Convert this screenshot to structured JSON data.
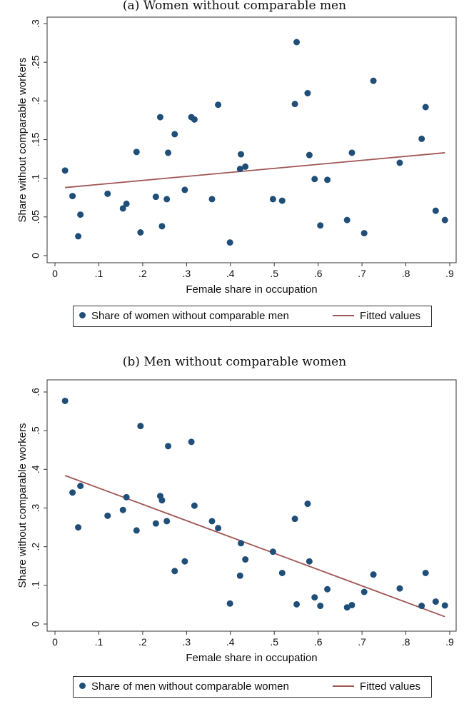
{
  "chart_data": [
    {
      "type": "scatter",
      "title": "(a) Women without comparable men",
      "xlabel": "Female share in occupation",
      "ylabel": "Share without comparable workers",
      "xlim": [
        0,
        0.9
      ],
      "ylim": [
        0,
        0.3
      ],
      "x_ticks": [
        0,
        0.1,
        0.2,
        0.3,
        0.4,
        0.5,
        0.6,
        0.7,
        0.8,
        0.9
      ],
      "x_tick_labels": [
        "0",
        ".1",
        ".2",
        ".3",
        ".4",
        ".5",
        ".6",
        ".7",
        ".8",
        ".9"
      ],
      "y_ticks": [
        0,
        0.05,
        0.1,
        0.15,
        0.2,
        0.25,
        0.3
      ],
      "y_tick_labels": [
        "0",
        ".05",
        ".1",
        ".15",
        ".2",
        ".25",
        ".3"
      ],
      "series": [
        {
          "name": "Share of women without comparable men",
          "kind": "scatter",
          "color": "#1f4e79",
          "points": [
            [
              0.023,
              0.11
            ],
            [
              0.04,
              0.077
            ],
            [
              0.053,
              0.025
            ],
            [
              0.058,
              0.053
            ],
            [
              0.12,
              0.08
            ],
            [
              0.155,
              0.061
            ],
            [
              0.163,
              0.067
            ],
            [
              0.186,
              0.134
            ],
            [
              0.195,
              0.03
            ],
            [
              0.23,
              0.076
            ],
            [
              0.24,
              0.179
            ],
            [
              0.244,
              0.038
            ],
            [
              0.255,
              0.073
            ],
            [
              0.258,
              0.133
            ],
            [
              0.273,
              0.157
            ],
            [
              0.296,
              0.085
            ],
            [
              0.311,
              0.179
            ],
            [
              0.318,
              0.176
            ],
            [
              0.358,
              0.073
            ],
            [
              0.372,
              0.195
            ],
            [
              0.399,
              0.017
            ],
            [
              0.422,
              0.112
            ],
            [
              0.424,
              0.131
            ],
            [
              0.434,
              0.115
            ],
            [
              0.497,
              0.073
            ],
            [
              0.518,
              0.071
            ],
            [
              0.547,
              0.196
            ],
            [
              0.551,
              0.276
            ],
            [
              0.576,
              0.21
            ],
            [
              0.58,
              0.13
            ],
            [
              0.592,
              0.099
            ],
            [
              0.605,
              0.039
            ],
            [
              0.621,
              0.098
            ],
            [
              0.666,
              0.046
            ],
            [
              0.677,
              0.133
            ],
            [
              0.705,
              0.029
            ],
            [
              0.726,
              0.226
            ],
            [
              0.786,
              0.12
            ],
            [
              0.836,
              0.151
            ],
            [
              0.845,
              0.192
            ],
            [
              0.868,
              0.058
            ],
            [
              0.889,
              0.046
            ]
          ]
        },
        {
          "name": "Fitted values",
          "kind": "line",
          "color": "#a05555",
          "points": [
            [
              0.023,
              0.088
            ],
            [
              0.889,
              0.133
            ]
          ]
        }
      ]
    },
    {
      "type": "scatter",
      "title": "(b) Men without comparable women",
      "xlabel": "Female share in occupation",
      "ylabel": "Share without comparable workers",
      "xlim": [
        0,
        0.9
      ],
      "ylim": [
        0,
        0.6
      ],
      "x_ticks": [
        0,
        0.1,
        0.2,
        0.3,
        0.4,
        0.5,
        0.6,
        0.7,
        0.8,
        0.9
      ],
      "x_tick_labels": [
        "0",
        ".1",
        ".2",
        ".3",
        ".4",
        ".5",
        ".6",
        ".7",
        ".8",
        ".9"
      ],
      "y_ticks": [
        0,
        0.1,
        0.2,
        0.3,
        0.4,
        0.5,
        0.6
      ],
      "y_tick_labels": [
        "0",
        ".1",
        ".2",
        ".3",
        ".4",
        ".5",
        ".6"
      ],
      "series": [
        {
          "name": "Share of men without comparable women",
          "kind": "scatter",
          "color": "#1f4e79",
          "points": [
            [
              0.023,
              0.577
            ],
            [
              0.04,
              0.34
            ],
            [
              0.053,
              0.25
            ],
            [
              0.058,
              0.357
            ],
            [
              0.12,
              0.28
            ],
            [
              0.155,
              0.295
            ],
            [
              0.163,
              0.328
            ],
            [
              0.186,
              0.242
            ],
            [
              0.195,
              0.512
            ],
            [
              0.23,
              0.26
            ],
            [
              0.24,
              0.331
            ],
            [
              0.244,
              0.32
            ],
            [
              0.255,
              0.266
            ],
            [
              0.258,
              0.46
            ],
            [
              0.273,
              0.137
            ],
            [
              0.296,
              0.162
            ],
            [
              0.311,
              0.471
            ],
            [
              0.318,
              0.306
            ],
            [
              0.358,
              0.266
            ],
            [
              0.372,
              0.248
            ],
            [
              0.399,
              0.053
            ],
            [
              0.422,
              0.125
            ],
            [
              0.424,
              0.209
            ],
            [
              0.434,
              0.167
            ],
            [
              0.497,
              0.187
            ],
            [
              0.518,
              0.132
            ],
            [
              0.547,
              0.272
            ],
            [
              0.551,
              0.051
            ],
            [
              0.576,
              0.311
            ],
            [
              0.58,
              0.162
            ],
            [
              0.592,
              0.069
            ],
            [
              0.605,
              0.047
            ],
            [
              0.621,
              0.09
            ],
            [
              0.666,
              0.043
            ],
            [
              0.677,
              0.049
            ],
            [
              0.705,
              0.083
            ],
            [
              0.726,
              0.128
            ],
            [
              0.786,
              0.092
            ],
            [
              0.836,
              0.047
            ],
            [
              0.845,
              0.132
            ],
            [
              0.868,
              0.058
            ],
            [
              0.889,
              0.048
            ]
          ]
        },
        {
          "name": "Fitted values",
          "kind": "line",
          "color": "#a05555",
          "points": [
            [
              0.023,
              0.384
            ],
            [
              0.889,
              0.019
            ]
          ]
        }
      ]
    }
  ]
}
